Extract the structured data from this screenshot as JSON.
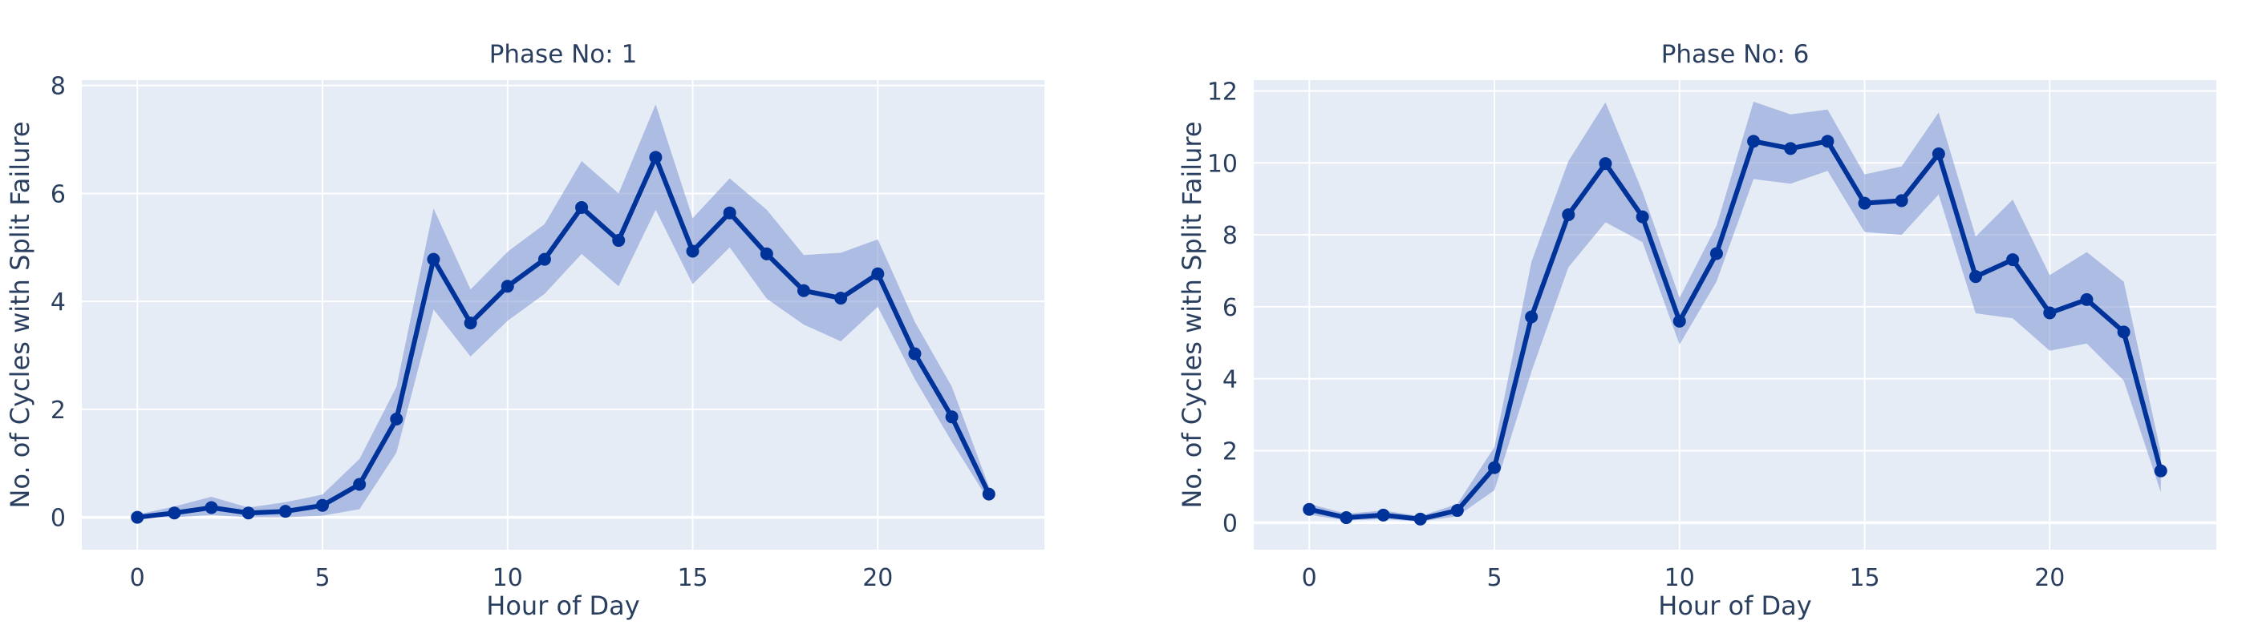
{
  "colors": {
    "plot_bg": "#e5ecf6",
    "grid": "#ffffff",
    "line": "#003399",
    "band": "#7f96d4",
    "text": "#2a3f5f"
  },
  "chart_data": [
    {
      "type": "line",
      "title": "Phase No: 1",
      "xlabel": "Hour of Day",
      "ylabel": "No. of Cycles with Split Failure",
      "xlim": [
        -1.5,
        24.5
      ],
      "ylim": [
        -0.6,
        8.1
      ],
      "xticks": [
        0,
        5,
        10,
        15,
        20
      ],
      "yticks": [
        0,
        2,
        4,
        6,
        8
      ],
      "grid": true,
      "x": [
        0,
        1,
        2,
        3,
        4,
        5,
        6,
        7,
        8,
        9,
        10,
        11,
        12,
        13,
        14,
        15,
        16,
        17,
        18,
        19,
        20,
        21,
        22,
        23
      ],
      "series": [
        {
          "values": [
            0,
            0.08,
            0.18,
            0.08,
            0.11,
            0.22,
            0.61,
            1.82,
            4.78,
            3.6,
            4.28,
            4.78,
            5.74,
            5.13,
            6.67,
            4.93,
            5.64,
            4.88,
            4.2,
            4.06,
            4.51,
            3.03,
            1.86,
            0.43
          ],
          "lower": [
            0,
            0,
            0.04,
            0,
            0,
            0.03,
            0.15,
            1.2,
            3.85,
            2.98,
            3.64,
            4.14,
            4.88,
            4.28,
            5.7,
            4.32,
            5.0,
            4.05,
            3.57,
            3.26,
            3.9,
            2.56,
            1.4,
            0.3
          ],
          "upper": [
            0.05,
            0.2,
            0.38,
            0.18,
            0.28,
            0.42,
            1.08,
            2.42,
            5.72,
            4.22,
            4.92,
            5.43,
            6.6,
            6.0,
            7.65,
            5.54,
            6.28,
            5.7,
            4.86,
            4.9,
            5.15,
            3.62,
            2.42,
            0.57
          ]
        }
      ]
    },
    {
      "type": "line",
      "title": "Phase No: 6",
      "xlabel": "Hour of Day",
      "ylabel": "No. of Cycles with Split Failure",
      "xlim": [
        -1.5,
        24.5
      ],
      "ylim": [
        -0.75,
        12.3
      ],
      "xticks": [
        0,
        5,
        10,
        15,
        20
      ],
      "yticks": [
        0,
        2,
        4,
        6,
        8,
        10,
        12
      ],
      "grid": true,
      "x": [
        0,
        1,
        2,
        3,
        4,
        5,
        6,
        7,
        8,
        9,
        10,
        11,
        12,
        13,
        14,
        15,
        16,
        17,
        18,
        19,
        20,
        21,
        22,
        23
      ],
      "series": [
        {
          "values": [
            0.37,
            0.14,
            0.21,
            0.1,
            0.34,
            1.53,
            5.72,
            8.56,
            9.98,
            8.5,
            5.6,
            7.48,
            10.6,
            10.4,
            10.6,
            8.88,
            8.95,
            10.25,
            6.84,
            7.31,
            5.83,
            6.2,
            5.3,
            1.44
          ],
          "lower": [
            0.22,
            0.06,
            0.1,
            0.03,
            0.18,
            0.9,
            4.2,
            7.1,
            8.35,
            7.8,
            4.95,
            6.7,
            9.55,
            9.42,
            9.78,
            8.08,
            8.0,
            9.12,
            5.82,
            5.68,
            4.78,
            4.98,
            3.95,
            0.85
          ],
          "upper": [
            0.52,
            0.25,
            0.34,
            0.18,
            0.52,
            2.1,
            7.25,
            10.05,
            11.68,
            9.2,
            6.25,
            8.25,
            11.7,
            11.35,
            11.48,
            9.68,
            9.9,
            11.4,
            7.95,
            8.98,
            6.88,
            7.52,
            6.7,
            1.95
          ]
        }
      ]
    }
  ]
}
